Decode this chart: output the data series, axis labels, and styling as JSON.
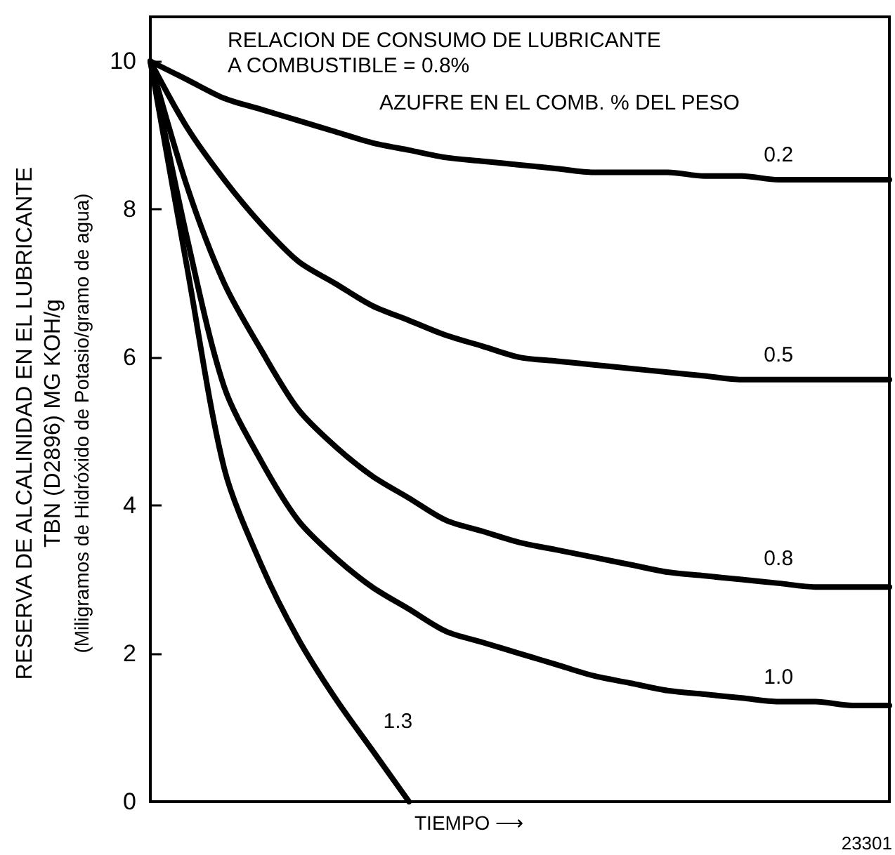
{
  "chart_data": {
    "type": "line",
    "xlabel": "TIEMPO ⟶",
    "ylabel": "RESERVA DE ALCALINIDAD EN EL LUBRICANTE\nTBN (D2896) MG KOH/g\n(Miligramos de Hidróxido de Potasio/gramo de agua)",
    "legend_title": "AZUFRE EN EL COMB. % DEL PESO",
    "annotations": [
      "RELACION DE CONSUMO DE LUBRICANTE\nA COMBUSTIBLE = 0.8%",
      "23301"
    ],
    "categories": [
      null,
      null,
      null,
      null,
      null,
      null,
      null,
      null,
      null,
      null,
      null,
      null,
      null,
      null,
      null,
      null,
      null,
      null,
      null,
      null,
      null
    ],
    "series": [
      {
        "name": "0.2",
        "color": "#000000",
        "values": [
          10,
          9.75,
          9.5,
          9.35,
          9.2,
          9.05,
          8.9,
          8.8,
          8.7,
          8.65,
          8.6,
          8.55,
          8.5,
          8.5,
          8.5,
          8.45,
          8.45,
          8.4,
          8.4,
          8.4,
          8.4
        ]
      },
      {
        "name": "0.5",
        "color": "#000000",
        "values": [
          10,
          9.1,
          8.4,
          7.8,
          7.3,
          7.0,
          6.7,
          6.5,
          6.3,
          6.15,
          6.0,
          5.95,
          5.9,
          5.85,
          5.8,
          5.75,
          5.7,
          5.7,
          5.7,
          5.7,
          5.7
        ]
      },
      {
        "name": "0.8",
        "color": "#000000",
        "values": [
          10,
          8.3,
          7.0,
          6.1,
          5.3,
          4.8,
          4.4,
          4.1,
          3.8,
          3.65,
          3.5,
          3.4,
          3.3,
          3.2,
          3.1,
          3.05,
          3.0,
          2.95,
          2.9,
          2.9,
          2.9
        ]
      },
      {
        "name": "1.0",
        "color": "#000000",
        "values": [
          10,
          7.6,
          5.6,
          4.6,
          3.8,
          3.3,
          2.9,
          2.6,
          2.3,
          2.15,
          2.0,
          1.85,
          1.7,
          1.6,
          1.5,
          1.45,
          1.4,
          1.35,
          1.35,
          1.3,
          1.3
        ]
      },
      {
        "name": "1.3",
        "color": "#000000",
        "values": [
          10,
          7.2,
          4.5,
          3.2,
          2.2,
          1.4,
          0.7,
          0,
          null,
          null,
          null,
          null,
          null,
          null,
          null,
          null,
          null,
          null,
          null,
          null,
          null
        ]
      }
    ],
    "ylim": [
      0,
      10.6
    ],
    "yticks": [
      0,
      2,
      4,
      6,
      8,
      10
    ],
    "tick_labels": "y",
    "grid": false,
    "legend": false,
    "marker": "none",
    "line_style": "solid"
  }
}
